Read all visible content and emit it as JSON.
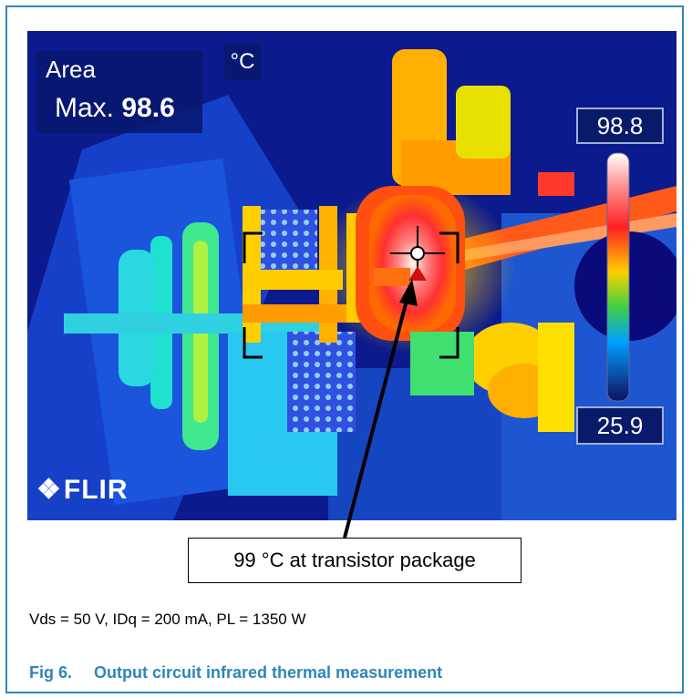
{
  "thermal_image": {
    "area_label": "Area",
    "max_prefix": "Max.",
    "max_value": "98.6",
    "unit": "°C",
    "scale_max": "98.8",
    "scale_min": "25.9",
    "brand": "FLIR",
    "brand_icon": "flir-logo-icon"
  },
  "callout": {
    "text": "99 °C at transistor package"
  },
  "conditions": "Vds = 50 V, IDq = 200 mA, PL = 1350 W",
  "caption": {
    "number": "Fig 6.",
    "title": "Output circuit infrared thermal measurement"
  },
  "colors": {
    "frame": "#2e86b8",
    "caption": "#2e86b8",
    "thermal_background": "#0b1a8c"
  }
}
